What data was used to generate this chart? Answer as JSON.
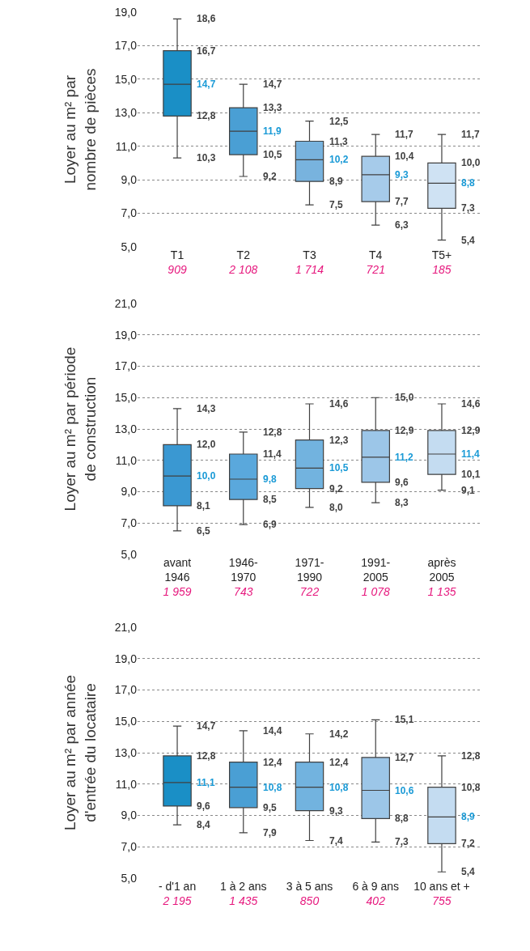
{
  "chart_data": [
    {
      "type": "box",
      "ylabel": "Loyer au m² par\nnombre de pièces",
      "categories": [
        "T1",
        "T2",
        "T3",
        "T4",
        "T5+"
      ],
      "boxes": [
        {
          "low": 10.3,
          "q1": 12.8,
          "median": 14.7,
          "q3": 16.7,
          "high": 18.6
        },
        {
          "low": 9.2,
          "q1": 10.5,
          "median": 11.9,
          "q3": 13.3,
          "high": 14.7
        },
        {
          "low": 7.5,
          "q1": 8.9,
          "median": 10.2,
          "q3": 11.3,
          "high": 12.5
        },
        {
          "low": 6.3,
          "q1": 7.7,
          "median": 9.3,
          "q3": 10.4,
          "high": 11.7
        },
        {
          "low": 5.4,
          "q1": 7.3,
          "median": 8.8,
          "q3": 10.0,
          "high": 11.7
        }
      ],
      "value_labels": [
        [
          "18,6",
          "16,7",
          "14,7",
          "12,8",
          "10,3"
        ],
        [
          "14,7",
          "13,3",
          "11,9",
          "10,5",
          "9,2"
        ],
        [
          "12,5",
          "11,3",
          "10,2",
          "8,9",
          "7,5"
        ],
        [
          "11,7",
          "10,4",
          "9,3",
          "7,7",
          "6,3"
        ],
        [
          "11,7",
          "10,0",
          "8,8",
          "7,3",
          "5,4"
        ]
      ],
      "colors": [
        "#1a8fc6",
        "#4a9fd4",
        "#78b3de",
        "#a6cbea",
        "#cfe2f3"
      ],
      "ylim": [
        5,
        19
      ],
      "yticks": [
        {
          "value": 5,
          "label": "5,0"
        },
        {
          "value": 7,
          "label": "7,0"
        },
        {
          "value": 9,
          "label": "9,0"
        },
        {
          "value": 11,
          "label": "11,0"
        },
        {
          "value": 13,
          "label": "13,0"
        },
        {
          "value": 15,
          "label": "15,0"
        },
        {
          "value": 17,
          "label": "17,0"
        },
        {
          "value": 19,
          "label": "19,0"
        }
      ],
      "grid": "y",
      "annotations": [
        "909",
        "2 108",
        "1 714",
        "721",
        "185"
      ]
    },
    {
      "type": "box",
      "ylabel": "Loyer au m² par période\nde construction",
      "categories": [
        "avant\n1946",
        "1946-\n1970",
        "1971-\n1990",
        "1991-\n2005",
        "après\n2005"
      ],
      "boxes": [
        {
          "low": 6.5,
          "q1": 8.1,
          "median": 10.0,
          "q3": 12.0,
          "high": 14.3
        },
        {
          "low": 6.9,
          "q1": 8.5,
          "median": 9.8,
          "q3": 11.4,
          "high": 12.8
        },
        {
          "low": 8.0,
          "q1": 9.2,
          "median": 10.5,
          "q3": 12.3,
          "high": 14.6
        },
        {
          "low": 8.3,
          "q1": 9.6,
          "median": 11.2,
          "q3": 12.9,
          "high": 15.0
        },
        {
          "low": 9.1,
          "q1": 10.1,
          "median": 11.4,
          "q3": 12.9,
          "high": 14.6
        }
      ],
      "value_labels": [
        [
          "14,3",
          "12,0",
          "10,0",
          "8,1",
          "6,5"
        ],
        [
          "12,8",
          "11,4",
          "9,8",
          "8,5",
          "6,9"
        ],
        [
          "14,6",
          "12,3",
          "10,5",
          "9,2",
          "8,0"
        ],
        [
          "15,0",
          "12,9",
          "11,2",
          "9,6",
          "8,3"
        ],
        [
          "14,6",
          "12,9",
          "11,4",
          "10,1",
          "9,1"
        ]
      ],
      "colors": [
        "#3a98d2",
        "#5aa8dc",
        "#72b3df",
        "#9cc6e8",
        "#c4dcf1"
      ],
      "ylim": [
        5,
        21
      ],
      "yticks": [
        {
          "value": 5,
          "label": "5,0"
        },
        {
          "value": 7,
          "label": "7,0"
        },
        {
          "value": 9,
          "label": "9,0"
        },
        {
          "value": 11,
          "label": "11,0"
        },
        {
          "value": 13,
          "label": "13,0"
        },
        {
          "value": 15,
          "label": "15,0"
        },
        {
          "value": 17,
          "label": "17,0"
        },
        {
          "value": 19,
          "label": "19,0"
        },
        {
          "value": 21,
          "label": "21,0"
        }
      ],
      "grid": "y",
      "annotations": [
        "1 959",
        "743",
        "722",
        "1 078",
        "1 135"
      ]
    },
    {
      "type": "box",
      "ylabel": "Loyer au m² par année\nd'entrée du locataire",
      "categories": [
        "- d'1 an",
        "1 à 2 ans",
        "3 à 5 ans",
        "6 à 9 ans",
        "10 ans et +"
      ],
      "boxes": [
        {
          "low": 8.4,
          "q1": 9.6,
          "median": 11.1,
          "q3": 12.8,
          "high": 14.7
        },
        {
          "low": 7.9,
          "q1": 9.5,
          "median": 10.8,
          "q3": 12.4,
          "high": 14.4
        },
        {
          "low": 7.4,
          "q1": 9.3,
          "median": 10.8,
          "q3": 12.4,
          "high": 14.2
        },
        {
          "low": 7.3,
          "q1": 8.8,
          "median": 10.6,
          "q3": 12.7,
          "high": 15.1
        },
        {
          "low": 5.4,
          "q1": 7.2,
          "median": 8.9,
          "q3": 10.8,
          "high": 12.8
        }
      ],
      "value_labels": [
        [
          "14,7",
          "12,8",
          "11,1",
          "9,6",
          "8,4"
        ],
        [
          "14,4",
          "12,4",
          "10,8",
          "9,5",
          "7,9"
        ],
        [
          "14,2",
          "12,4",
          "10,8",
          "9,3",
          "7,4"
        ],
        [
          "15,1",
          "12,7",
          "10,6",
          "8,8",
          "7,3"
        ],
        [
          "12,8",
          "10,8",
          "8,9",
          "7,2",
          "5,4"
        ]
      ],
      "colors": [
        "#1a8fc6",
        "#4a9fd4",
        "#72b3df",
        "#9cc6e8",
        "#c4dcf1"
      ],
      "ylim": [
        5,
        21
      ],
      "yticks": [
        {
          "value": 5,
          "label": "5,0"
        },
        {
          "value": 7,
          "label": "7,0"
        },
        {
          "value": 9,
          "label": "9,0"
        },
        {
          "value": 11,
          "label": "11,0"
        },
        {
          "value": 13,
          "label": "13,0"
        },
        {
          "value": 15,
          "label": "15,0"
        },
        {
          "value": 17,
          "label": "17,0"
        },
        {
          "value": 19,
          "label": "19,0"
        },
        {
          "value": 21,
          "label": "21,0"
        }
      ],
      "grid": "y",
      "annotations": [
        "2 195",
        "1 435",
        "850",
        "402",
        "755"
      ]
    }
  ]
}
